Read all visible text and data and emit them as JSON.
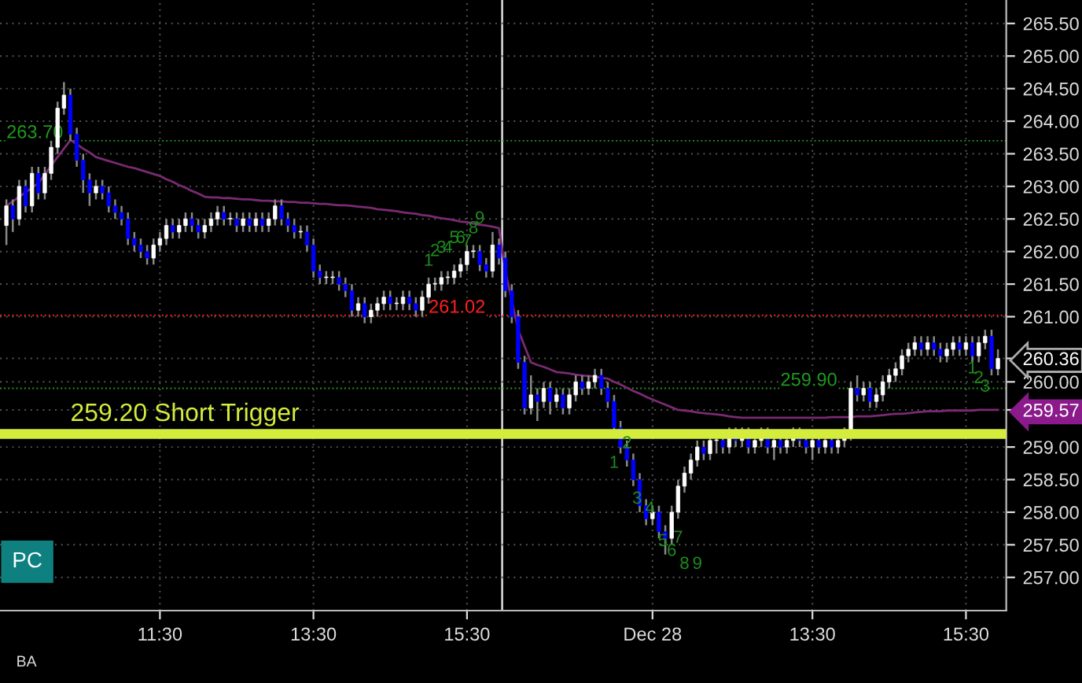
{
  "chart_data": {
    "type": "candlestick",
    "categories": [
      null,
      null,
      null,
      null,
      null,
      null,
      null,
      null,
      null,
      null,
      null,
      null,
      null,
      null,
      null,
      null,
      null,
      null,
      null,
      null,
      null,
      null,
      null,
      null,
      "11:30",
      null,
      null,
      null,
      null,
      null,
      null,
      null,
      null,
      null,
      null,
      null,
      null,
      null,
      null,
      null,
      null,
      null,
      null,
      null,
      null,
      null,
      null,
      null,
      "13:30",
      null,
      null,
      null,
      null,
      null,
      null,
      null,
      null,
      null,
      null,
      null,
      null,
      null,
      null,
      null,
      null,
      null,
      null,
      null,
      null,
      null,
      null,
      null,
      "15:30",
      null,
      null,
      null,
      null,
      null,
      null,
      null,
      null,
      null,
      null,
      null,
      null,
      null,
      null,
      null,
      null,
      null,
      null,
      null,
      null,
      null,
      null,
      null,
      null,
      null,
      null,
      null,
      null,
      "Dec 28",
      null,
      null,
      null,
      null,
      null,
      null,
      null,
      null,
      null,
      null,
      null,
      null,
      null,
      null,
      null,
      null,
      null,
      null,
      null,
      null,
      null,
      null,
      null,
      null,
      "13:30",
      null,
      null,
      null,
      null,
      null,
      null,
      null,
      null,
      null,
      null,
      null,
      null,
      null,
      null,
      null,
      null,
      null,
      null,
      null,
      null,
      null,
      null,
      null,
      "15:30",
      null,
      null,
      null,
      null,
      null
    ],
    "ohlc": [
      [
        262.4,
        262.8,
        262.1,
        262.7
      ],
      [
        262.7,
        262.8,
        262.3,
        262.5
      ],
      [
        262.5,
        263.1,
        262.4,
        263.0
      ],
      [
        263.0,
        263.1,
        262.6,
        262.7
      ],
      [
        262.7,
        263.3,
        262.6,
        263.2
      ],
      [
        263.2,
        263.3,
        262.8,
        262.9
      ],
      [
        262.9,
        263.3,
        262.8,
        263.2
      ],
      [
        263.2,
        263.7,
        263.1,
        263.6
      ],
      [
        263.6,
        264.3,
        263.5,
        264.2
      ],
      [
        264.2,
        264.6,
        264.1,
        264.4
      ],
      [
        264.4,
        264.5,
        263.7,
        263.8
      ],
      [
        263.8,
        263.9,
        263.3,
        263.4
      ],
      [
        263.4,
        263.5,
        262.9,
        263.1
      ],
      [
        263.1,
        263.2,
        262.7,
        262.9
      ],
      [
        262.9,
        263.1,
        262.8,
        263.0
      ],
      [
        263.0,
        263.1,
        262.8,
        262.9
      ],
      [
        262.9,
        263.0,
        262.6,
        262.7
      ],
      [
        262.7,
        262.8,
        262.5,
        262.6
      ],
      [
        262.6,
        262.7,
        262.4,
        262.5
      ],
      [
        262.5,
        262.6,
        262.1,
        262.2
      ],
      [
        262.2,
        262.3,
        262.0,
        262.1
      ],
      [
        262.1,
        262.2,
        261.9,
        262.0
      ],
      [
        262.0,
        262.1,
        261.8,
        261.9
      ],
      [
        261.9,
        262.2,
        261.8,
        262.1
      ],
      [
        262.1,
        262.3,
        262.0,
        262.2
      ],
      [
        262.2,
        262.5,
        262.1,
        262.4
      ],
      [
        262.4,
        262.5,
        262.2,
        262.3
      ],
      [
        262.3,
        262.5,
        262.2,
        262.4
      ],
      [
        262.4,
        262.6,
        262.3,
        262.5
      ],
      [
        262.5,
        262.6,
        262.3,
        262.4
      ],
      [
        262.4,
        262.5,
        262.2,
        262.3
      ],
      [
        262.3,
        262.5,
        262.2,
        262.4
      ],
      [
        262.4,
        262.6,
        262.3,
        262.5
      ],
      [
        262.5,
        262.7,
        262.4,
        262.6
      ],
      [
        262.6,
        262.7,
        262.4,
        262.5
      ],
      [
        262.5,
        262.6,
        262.4,
        262.5
      ],
      [
        262.5,
        262.6,
        262.3,
        262.4
      ],
      [
        262.4,
        262.6,
        262.3,
        262.5
      ],
      [
        262.5,
        262.6,
        262.3,
        262.4
      ],
      [
        262.4,
        262.6,
        262.3,
        262.5
      ],
      [
        262.5,
        262.6,
        262.3,
        262.4
      ],
      [
        262.4,
        262.6,
        262.3,
        262.5
      ],
      [
        262.5,
        262.8,
        262.4,
        262.7
      ],
      [
        262.7,
        262.8,
        262.4,
        262.5
      ],
      [
        262.5,
        262.6,
        262.3,
        262.4
      ],
      [
        262.4,
        262.5,
        262.2,
        262.3
      ],
      [
        262.3,
        262.4,
        262.2,
        262.3
      ],
      [
        262.3,
        262.4,
        262.0,
        262.1
      ],
      [
        262.1,
        262.2,
        261.6,
        261.7
      ],
      [
        261.7,
        261.8,
        261.5,
        261.6
      ],
      [
        261.6,
        261.7,
        261.5,
        261.6
      ],
      [
        261.6,
        261.7,
        261.5,
        261.6
      ],
      [
        261.6,
        261.7,
        261.4,
        261.5
      ],
      [
        261.5,
        261.6,
        261.3,
        261.4
      ],
      [
        261.4,
        261.5,
        261.0,
        261.1
      ],
      [
        261.1,
        261.3,
        261.0,
        261.2
      ],
      [
        261.2,
        261.3,
        260.9,
        261.0
      ],
      [
        261.0,
        261.2,
        260.9,
        261.1
      ],
      [
        261.1,
        261.3,
        261.0,
        261.2
      ],
      [
        261.2,
        261.4,
        261.1,
        261.3
      ],
      [
        261.3,
        261.4,
        261.1,
        261.2
      ],
      [
        261.2,
        261.3,
        261.1,
        261.2
      ],
      [
        261.2,
        261.4,
        261.1,
        261.3
      ],
      [
        261.3,
        261.4,
        261.1,
        261.2
      ],
      [
        261.2,
        261.3,
        261.0,
        261.1
      ],
      [
        261.1,
        261.4,
        261.0,
        261.3
      ],
      [
        261.3,
        261.6,
        261.2,
        261.5
      ],
      [
        261.5,
        261.6,
        261.4,
        261.5
      ],
      [
        261.5,
        261.7,
        261.4,
        261.6
      ],
      [
        261.6,
        261.7,
        261.5,
        261.6
      ],
      [
        261.6,
        261.8,
        261.5,
        261.7
      ],
      [
        261.7,
        261.9,
        261.6,
        261.8
      ],
      [
        261.8,
        262.1,
        261.7,
        262.0
      ],
      [
        262.0,
        262.1,
        261.9,
        262.0
      ],
      [
        262.0,
        262.1,
        261.7,
        261.8
      ],
      [
        261.8,
        261.9,
        261.6,
        261.7
      ],
      [
        261.7,
        262.3,
        261.6,
        262.1
      ],
      [
        262.1,
        262.2,
        261.8,
        261.9
      ],
      [
        261.9,
        262.0,
        261.3,
        261.4
      ],
      [
        261.4,
        261.5,
        260.9,
        261.0
      ],
      [
        261.0,
        261.1,
        260.2,
        260.3
      ],
      [
        260.3,
        260.4,
        259.5,
        259.6
      ],
      [
        259.6,
        260.1,
        259.5,
        259.8
      ],
      [
        259.8,
        259.9,
        259.4,
        259.7
      ],
      [
        259.7,
        260.0,
        259.6,
        259.9
      ],
      [
        259.9,
        260.0,
        259.5,
        259.7
      ],
      [
        259.7,
        259.9,
        259.6,
        259.8
      ],
      [
        259.8,
        259.9,
        259.5,
        259.6
      ],
      [
        259.6,
        259.9,
        259.5,
        259.8
      ],
      [
        259.8,
        260.1,
        259.7,
        260.0
      ],
      [
        260.0,
        260.1,
        259.8,
        259.9
      ],
      [
        259.9,
        260.1,
        259.8,
        260.0
      ],
      [
        260.0,
        260.2,
        259.9,
        260.1
      ],
      [
        260.1,
        260.2,
        259.8,
        259.9
      ],
      [
        259.9,
        260.0,
        259.6,
        259.7
      ],
      [
        259.7,
        259.8,
        259.2,
        259.3
      ],
      [
        259.3,
        259.4,
        258.9,
        259.0
      ],
      [
        259.0,
        259.1,
        258.7,
        258.8
      ],
      [
        258.8,
        258.9,
        258.4,
        258.5
      ],
      [
        258.5,
        258.6,
        258.0,
        258.1
      ],
      [
        258.1,
        258.2,
        257.8,
        257.9
      ],
      [
        257.9,
        258.1,
        257.8,
        258.0
      ],
      [
        258.0,
        258.1,
        257.6,
        257.7
      ],
      [
        257.7,
        257.8,
        257.35,
        257.6
      ],
      [
        257.6,
        258.1,
        257.5,
        258.0
      ],
      [
        258.0,
        258.5,
        257.9,
        258.4
      ],
      [
        258.4,
        258.7,
        258.3,
        258.6
      ],
      [
        258.6,
        258.9,
        258.5,
        258.8
      ],
      [
        258.8,
        259.1,
        258.7,
        259.0
      ],
      [
        259.0,
        259.1,
        258.8,
        258.9
      ],
      [
        258.9,
        259.2,
        258.8,
        259.1
      ],
      [
        259.1,
        259.2,
        258.9,
        259.1
      ],
      [
        259.1,
        259.2,
        258.9,
        259.0
      ],
      [
        259.0,
        259.3,
        258.9,
        259.2
      ],
      [
        259.2,
        259.3,
        259.0,
        259.1
      ],
      [
        259.1,
        259.3,
        259.0,
        259.2
      ],
      [
        259.2,
        259.3,
        258.9,
        259.0
      ],
      [
        259.0,
        259.2,
        258.9,
        259.1
      ],
      [
        259.1,
        259.3,
        259.0,
        259.2
      ],
      [
        259.2,
        259.3,
        258.9,
        259.0
      ],
      [
        259.0,
        259.2,
        258.8,
        259.1
      ],
      [
        259.1,
        259.2,
        258.9,
        259.0
      ],
      [
        259.0,
        259.2,
        258.9,
        259.1
      ],
      [
        259.1,
        259.3,
        259.0,
        259.2
      ],
      [
        259.2,
        259.3,
        259.0,
        259.1
      ],
      [
        259.1,
        259.2,
        258.9,
        259.0
      ],
      [
        259.0,
        259.2,
        258.8,
        259.1
      ],
      [
        259.1,
        259.2,
        258.9,
        259.0
      ],
      [
        259.0,
        259.2,
        258.9,
        259.1
      ],
      [
        259.1,
        259.2,
        258.9,
        259.0
      ],
      [
        259.0,
        259.2,
        258.9,
        259.1
      ],
      [
        259.1,
        259.3,
        259.0,
        259.2
      ],
      [
        259.2,
        260.0,
        259.1,
        259.9
      ],
      [
        259.9,
        260.1,
        259.7,
        259.8
      ],
      [
        259.8,
        260.0,
        259.7,
        259.9
      ],
      [
        259.9,
        260.0,
        259.6,
        259.7
      ],
      [
        259.7,
        259.9,
        259.6,
        259.8
      ],
      [
        259.8,
        260.1,
        259.7,
        260.0
      ],
      [
        260.0,
        260.2,
        259.9,
        260.1
      ],
      [
        260.1,
        260.3,
        260.0,
        260.2
      ],
      [
        260.2,
        260.5,
        260.1,
        260.4
      ],
      [
        260.4,
        260.6,
        260.3,
        260.5
      ],
      [
        260.5,
        260.7,
        260.4,
        260.6
      ],
      [
        260.6,
        260.7,
        260.4,
        260.5
      ],
      [
        260.5,
        260.7,
        260.4,
        260.6
      ],
      [
        260.6,
        260.7,
        260.4,
        260.5
      ],
      [
        260.5,
        260.6,
        260.3,
        260.4
      ],
      [
        260.4,
        260.6,
        260.3,
        260.5
      ],
      [
        260.5,
        260.7,
        260.4,
        260.6
      ],
      [
        260.6,
        260.7,
        260.4,
        260.5
      ],
      [
        260.5,
        260.7,
        260.4,
        260.6
      ],
      [
        260.6,
        260.7,
        260.3,
        260.4
      ],
      [
        260.4,
        260.7,
        260.3,
        260.6
      ],
      [
        260.6,
        260.8,
        260.5,
        260.7
      ],
      [
        260.7,
        260.8,
        260.1,
        260.2
      ],
      [
        260.2,
        260.5,
        260.1,
        260.36
      ]
    ],
    "series": [
      {
        "type": "line",
        "color": "#7a2a72",
        "values": [
          262.7,
          262.77,
          262.84,
          262.91,
          262.98,
          263.05,
          263.18,
          263.32,
          263.45,
          263.58,
          263.71,
          263.65,
          263.58,
          263.52,
          263.45,
          263.42,
          263.39,
          263.36,
          263.33,
          263.3,
          263.28,
          263.25,
          263.22,
          263.19,
          263.16,
          263.11,
          263.07,
          263.02,
          262.98,
          262.93,
          262.89,
          262.84,
          262.83,
          262.83,
          262.82,
          262.82,
          262.81,
          262.8,
          262.8,
          262.79,
          262.78,
          262.78,
          262.77,
          262.77,
          262.76,
          262.76,
          262.75,
          262.75,
          262.74,
          262.73,
          262.73,
          262.72,
          262.71,
          262.71,
          262.7,
          262.69,
          262.68,
          262.67,
          262.65,
          262.64,
          262.63,
          262.62,
          262.6,
          262.59,
          262.58,
          262.56,
          262.55,
          262.53,
          262.51,
          262.5,
          262.48,
          262.46,
          262.45,
          262.43,
          262.41,
          262.4,
          262.38,
          262.36,
          261.7,
          261.25,
          260.8,
          260.55,
          260.3,
          260.26,
          260.23,
          260.19,
          260.15,
          260.14,
          260.13,
          260.11,
          260.1,
          260.09,
          260.08,
          260.06,
          260.05,
          260.0,
          259.96,
          259.91,
          259.86,
          259.82,
          259.77,
          259.73,
          259.69,
          259.65,
          259.61,
          259.57,
          259.56,
          259.55,
          259.53,
          259.52,
          259.51,
          259.5,
          259.49,
          259.47,
          259.46,
          259.45,
          259.45,
          259.45,
          259.45,
          259.45,
          259.45,
          259.45,
          259.45,
          259.45,
          259.45,
          259.45,
          259.45,
          259.45,
          259.45,
          259.46,
          259.46,
          259.46,
          259.46,
          259.47,
          259.47,
          259.47,
          259.48,
          259.49,
          259.5,
          259.51,
          259.51,
          259.52,
          259.53,
          259.54,
          259.55,
          259.55,
          259.55,
          259.56,
          259.56,
          259.56,
          259.56,
          259.56,
          259.57,
          259.57,
          259.57,
          259.57
        ]
      }
    ],
    "ylim": [
      256.49,
      265.86
    ],
    "yticks": [
      {
        "value": 257.0,
        "label": "257.00"
      },
      {
        "value": 257.5,
        "label": "257.50"
      },
      {
        "value": 258.0,
        "label": "258.00"
      },
      {
        "value": 258.5,
        "label": "258.50"
      },
      {
        "value": 259.0,
        "label": "259.00"
      },
      {
        "value": 259.57,
        "label": "259.57"
      },
      {
        "value": 260.0,
        "label": "260.00"
      },
      {
        "value": 260.36,
        "label": "260.36"
      },
      {
        "value": 261.0,
        "label": "261.00"
      },
      {
        "value": 261.5,
        "label": "261.50"
      },
      {
        "value": 262.0,
        "label": "262.00"
      },
      {
        "value": 262.5,
        "label": "262.50"
      },
      {
        "value": 263.0,
        "label": "263.00"
      },
      {
        "value": 263.5,
        "label": "263.50"
      },
      {
        "value": 264.0,
        "label": "264.00"
      },
      {
        "value": 264.5,
        "label": "264.50"
      },
      {
        "value": 265.0,
        "label": "265.00"
      },
      {
        "value": 265.5,
        "label": "265.50"
      }
    ],
    "grid": true,
    "ref_lines": [
      {
        "axis": "y",
        "value": 259.2,
        "label": "259.20 Short Trigger",
        "color": "#d4ec3c"
      },
      {
        "axis": "y",
        "value": 263.7,
        "label": "263.70",
        "color": "#1f9a1f",
        "line_style": "dotted"
      },
      {
        "axis": "y",
        "value": 261.02,
        "label": "261.02",
        "color": "#ff2020",
        "line_style": "dotted"
      },
      {
        "axis": "y",
        "value": 259.9,
        "label": "259.90",
        "color": "#1f9a1f",
        "line_style": "dotted"
      }
    ],
    "annotations": [
      "1",
      "2",
      "3",
      "4",
      "5",
      "6",
      "7",
      "8",
      "9",
      "1",
      "2",
      "3",
      "4",
      "5",
      "6",
      "7",
      "8",
      "9",
      "1",
      "2",
      "3",
      "PC",
      "BA"
    ]
  }
}
